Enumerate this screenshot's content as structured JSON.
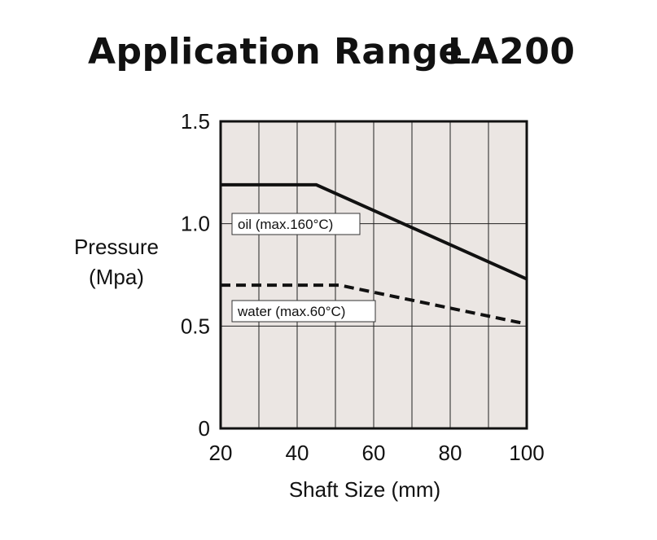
{
  "header": {
    "title": "Application Range",
    "model": "LA200"
  },
  "chart_data": {
    "type": "line",
    "title": "Application Range LA200",
    "xlabel": "Shaft Size (mm)",
    "ylabel_line1": "Pressure",
    "ylabel_line2": "(Mpa)",
    "xlim": [
      20,
      100
    ],
    "ylim": [
      0,
      1.5
    ],
    "x_ticks": [
      20,
      40,
      60,
      80,
      100
    ],
    "x_tick_labels": [
      "20",
      "40",
      "60",
      "80",
      "100"
    ],
    "y_ticks": [
      0,
      0.5,
      1.0,
      1.5
    ],
    "y_tick_labels": [
      "0",
      "0.5",
      "1.0",
      "1.5"
    ],
    "x_grid": [
      20,
      30,
      40,
      50,
      60,
      70,
      80,
      90,
      100
    ],
    "y_grid": [
      0,
      0.5,
      1.0,
      1.5
    ],
    "grid": true,
    "plot_background": "#ebe6e3",
    "series": [
      {
        "name": "oil (max.160°C)",
        "style": "solid",
        "color": "#111111",
        "x": [
          20,
          45,
          100
        ],
        "y": [
          1.19,
          1.19,
          0.73
        ]
      },
      {
        "name": "water (max.60°C)",
        "style": "dashed",
        "color": "#111111",
        "x": [
          20,
          51,
          100
        ],
        "y": [
          0.7,
          0.7,
          0.51
        ]
      }
    ],
    "annotations": [
      {
        "text": "oil (max.160°C)",
        "series": 0
      },
      {
        "text": "water (max.60°C)",
        "series": 1
      }
    ]
  }
}
